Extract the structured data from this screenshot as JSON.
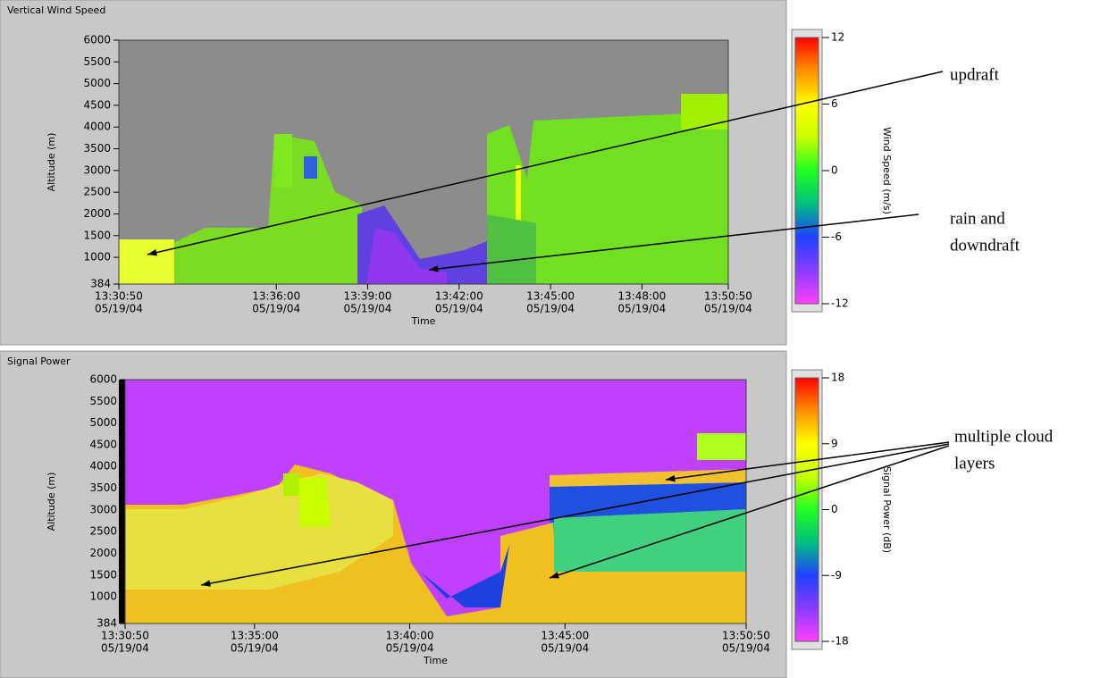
{
  "chart_data": [
    {
      "type": "heatmap",
      "title": "Vertical Wind Speed",
      "xlabel": "Time",
      "ylabel": "Altitude (m)",
      "ylim": [
        384,
        6000
      ],
      "yticks": [
        384,
        1000,
        1500,
        2000,
        2500,
        3000,
        3500,
        4000,
        4500,
        5000,
        5500,
        6000
      ],
      "xlim": [
        "2004-05-19T13:30:50",
        "2004-05-19T13:50:50"
      ],
      "xticks": [
        {
          "value": "2004-05-19T13:30:50",
          "label": [
            "13:30:50",
            "05/19/04"
          ]
        },
        {
          "value": "2004-05-19T13:36:00",
          "label": [
            "13:36:00",
            "05/19/04"
          ]
        },
        {
          "value": "2004-05-19T13:39:00",
          "label": [
            "13:39:00",
            "05/19/04"
          ]
        },
        {
          "value": "2004-05-19T13:42:00",
          "label": [
            "13:42:00",
            "05/19/04"
          ]
        },
        {
          "value": "2004-05-19T13:45:00",
          "label": [
            "13:45:00",
            "05/19/04"
          ]
        },
        {
          "value": "2004-05-19T13:48:00",
          "label": [
            "13:48:00",
            "05/19/04"
          ]
        },
        {
          "value": "2004-05-19T13:50:50",
          "label": [
            "13:50:50",
            "05/19/04"
          ]
        }
      ],
      "colorbar": {
        "label": "Wind Speed (m/s)",
        "lim": [
          -12,
          12
        ],
        "ticks": [
          12,
          6,
          0,
          -6,
          -12
        ],
        "colormap": [
          "#ff40ff",
          "#8a3cff",
          "#2040ff",
          "#00c080",
          "#20ff20",
          "#c8ff00",
          "#ffff00",
          "#ff9000",
          "#ff0000"
        ]
      },
      "background": "#8c8c8c"
    },
    {
      "type": "heatmap",
      "title": "Signal Power",
      "xlabel": "Time",
      "ylabel": "Altitude (m)",
      "ylim": [
        384,
        6000
      ],
      "yticks": [
        384,
        1000,
        1500,
        2000,
        2500,
        3000,
        3500,
        4000,
        4500,
        5000,
        5500,
        6000
      ],
      "xlim": [
        "2004-05-19T13:30:50",
        "2004-05-19T13:50:50"
      ],
      "xticks": [
        {
          "value": "2004-05-19T13:30:50",
          "label": [
            "13:30:50",
            "05/19/04"
          ]
        },
        {
          "value": "2004-05-19T13:35:00",
          "label": [
            "13:35:00",
            "05/19/04"
          ]
        },
        {
          "value": "2004-05-19T13:40:00",
          "label": [
            "13:40:00",
            "05/19/04"
          ]
        },
        {
          "value": "2004-05-19T13:45:00",
          "label": [
            "13:45:00",
            "05/19/04"
          ]
        },
        {
          "value": "2004-05-19T13:50:50",
          "label": [
            "13:50:50",
            "05/19/04"
          ]
        }
      ],
      "colorbar": {
        "label": "Signal Power (dB)",
        "lim": [
          -18,
          18
        ],
        "ticks": [
          18,
          9,
          0,
          -9,
          -18
        ],
        "colormap": [
          "#ff40ff",
          "#8a3cff",
          "#2040ff",
          "#00c080",
          "#20ff20",
          "#c8ff00",
          "#ffff00",
          "#ff9000",
          "#ff0000"
        ]
      },
      "background": "#c040ff"
    }
  ],
  "annotations": [
    [
      "updraft"
    ],
    [
      "rain and",
      "downdraft"
    ],
    [
      "multiple cloud",
      "layers"
    ]
  ]
}
